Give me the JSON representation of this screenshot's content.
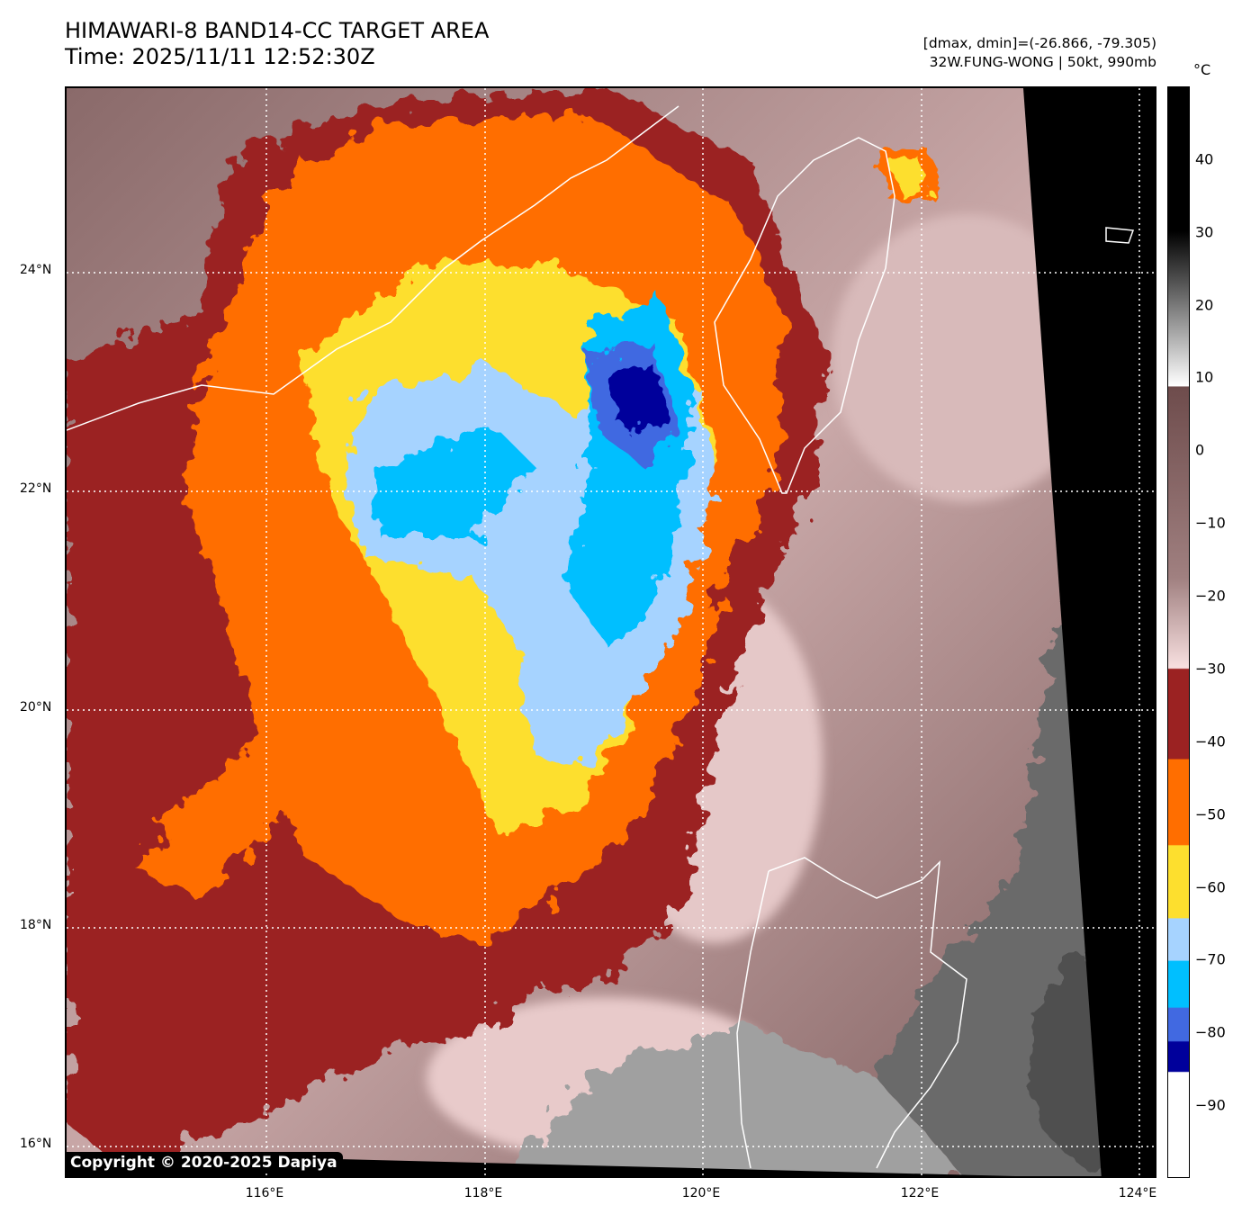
{
  "header": {
    "title": "HIMAWARI-8 BAND14-CC TARGET AREA",
    "time": "Time: 2025/11/11 12:52:30Z",
    "range": "[dmax, dmin]=(-26.866, -79.305)",
    "storm": "32W.FUNG-WONG | 50kt, 990mb"
  },
  "map": {
    "lat_labels": [
      "24°N",
      "22°N",
      "20°N",
      "18°N",
      "16°N"
    ],
    "lon_labels": [
      "116°E",
      "118°E",
      "120°E",
      "122°E",
      "124°E"
    ],
    "copyright": "Copyright © 2020-2025 Dapiya"
  },
  "colorbar": {
    "unit": "°C",
    "ticks": [
      "40",
      "30",
      "20",
      "10",
      "0",
      "−10",
      "−20",
      "−30",
      "−40",
      "−50",
      "−60",
      "−70",
      "−80",
      "−90"
    ],
    "range": [
      -100,
      50
    ],
    "colors": {
      "dark_red": "#9b2222",
      "orange": "#ff6e00",
      "yellow": "#fddf2e",
      "light_blue": "#a6d3ff",
      "cyan": "#00bfff",
      "royal_blue": "#4169e1",
      "navy": "#00009b"
    }
  }
}
